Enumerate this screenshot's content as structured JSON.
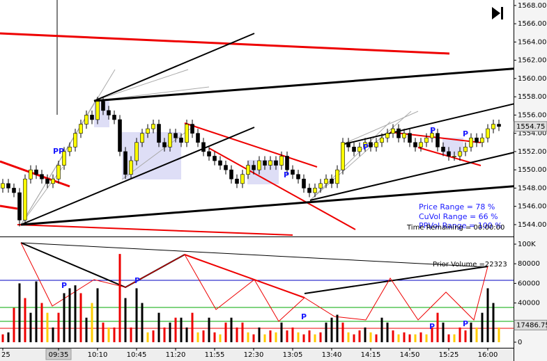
{
  "chart_data": [
    {
      "type": "candlestick",
      "open": [
        1548,
        1548.5,
        1548,
        1547.5,
        1544.5,
        1549,
        1550,
        1549.5,
        1549,
        1548.5,
        1549,
        1550.5,
        1552,
        1552.5,
        1554,
        1555,
        1556,
        1555.5,
        1557.5,
        1556.5,
        1556,
        1555.5,
        1552,
        1549.5,
        1551,
        1553,
        1554,
        1554.5,
        1555,
        1553,
        1552.5,
        1554,
        1553.5,
        1553,
        1555,
        1554,
        1553,
        1552,
        1551.5,
        1551,
        1550.5,
        1550,
        1549,
        1548.5,
        1549.5,
        1550.5,
        1550,
        1551,
        1550.5,
        1551,
        1550.5,
        1551.5,
        1550,
        1549.5,
        1549,
        1548,
        1547.5,
        1548,
        1548.5,
        1549,
        1548.5,
        1550,
        1553,
        1552.5,
        1552,
        1552.5,
        1553,
        1552.5,
        1553,
        1553.5,
        1554,
        1554.5,
        1553.5,
        1554,
        1553,
        1552.5,
        1553,
        1553.5,
        1554,
        1552.5,
        1552,
        1551.5,
        1551.5,
        1552,
        1552.5,
        1553.5,
        1553,
        1553.5,
        1554.5,
        1555
      ],
      "high": [
        1549,
        1549,
        1548.5,
        1548,
        1549.5,
        1550.5,
        1550.5,
        1550,
        1549.5,
        1549.5,
        1551,
        1552.5,
        1553,
        1554.5,
        1555.5,
        1556.5,
        1556.5,
        1558,
        1558,
        1557,
        1556.5,
        1556,
        1552.5,
        1551.5,
        1553.5,
        1554.5,
        1555,
        1555.5,
        1555.5,
        1553.5,
        1554.5,
        1554.5,
        1554,
        1555.5,
        1555.5,
        1554.5,
        1553.5,
        1552.5,
        1552,
        1551.5,
        1551,
        1550.5,
        1549.5,
        1550,
        1551,
        1551,
        1551.5,
        1551.5,
        1551.5,
        1551.5,
        1552,
        1552,
        1550.5,
        1550,
        1549.5,
        1548.5,
        1548.5,
        1549,
        1549.5,
        1549.5,
        1550.5,
        1553.5,
        1553.5,
        1553,
        1553,
        1553.5,
        1553.5,
        1553.5,
        1554,
        1554.5,
        1555,
        1555,
        1554.5,
        1554.5,
        1553.5,
        1553.5,
        1554,
        1554.5,
        1554.5,
        1553,
        1552.5,
        1552,
        1552.5,
        1553,
        1554,
        1554,
        1554,
        1555,
        1555.5,
        1555.5
      ],
      "low": [
        1547.5,
        1547.5,
        1547,
        1543.8,
        1544,
        1548.5,
        1549,
        1548.5,
        1548,
        1548,
        1548.5,
        1550,
        1551.5,
        1552,
        1553.5,
        1554.5,
        1555,
        1555,
        1556,
        1555.5,
        1555,
        1551.5,
        1549,
        1549,
        1550.5,
        1552.5,
        1553.5,
        1554,
        1552.5,
        1552,
        1552,
        1553,
        1552.5,
        1552.5,
        1553.5,
        1552.5,
        1551.5,
        1551,
        1550.5,
        1550,
        1549.5,
        1548.5,
        1548,
        1548,
        1549,
        1549.5,
        1549.5,
        1550,
        1550,
        1550,
        1550,
        1549.5,
        1549,
        1548.5,
        1547.5,
        1547,
        1547,
        1547.5,
        1548,
        1548,
        1548,
        1549.5,
        1552,
        1551.5,
        1551.5,
        1552,
        1552,
        1552,
        1552.5,
        1553,
        1553.5,
        1553,
        1553,
        1552.5,
        1552,
        1552,
        1552.5,
        1553,
        1552,
        1551.5,
        1551,
        1551,
        1551,
        1551.5,
        1552,
        1552.5,
        1552.5,
        1553,
        1554,
        1554.25
      ],
      "close": [
        1548.5,
        1548,
        1547.5,
        1544.5,
        1549,
        1550,
        1549.5,
        1549,
        1548.5,
        1549,
        1550.5,
        1552,
        1552.5,
        1554,
        1555,
        1556,
        1555.5,
        1557.5,
        1556.5,
        1556,
        1555.5,
        1552,
        1549.5,
        1551,
        1553,
        1554,
        1554.5,
        1555,
        1553,
        1552.5,
        1554,
        1553.5,
        1553,
        1555,
        1554,
        1553,
        1552,
        1551.5,
        1551,
        1550.5,
        1550,
        1549,
        1548.5,
        1549.5,
        1550.5,
        1550,
        1551,
        1550.5,
        1551,
        1550.5,
        1551.5,
        1550,
        1549.5,
        1549,
        1548,
        1547.5,
        1548,
        1548.5,
        1549,
        1548.5,
        1550,
        1553,
        1552.5,
        1552,
        1552.5,
        1553,
        1552.5,
        1553,
        1553.5,
        1554,
        1554.5,
        1553.5,
        1554,
        1553,
        1552.5,
        1553,
        1553.5,
        1554,
        1552.5,
        1552,
        1551.5,
        1551.5,
        1552,
        1552.5,
        1553.5,
        1553,
        1553.5,
        1554.5,
        1555,
        1554.75
      ],
      "up_color": "#ffff00",
      "down_color": "#000000",
      "ylim": [
        1542.7,
        1568.6
      ],
      "yticks": [
        {
          "value": 1544,
          "label": "1544.00"
        },
        {
          "value": 1546,
          "label": "1546.00"
        },
        {
          "value": 1548,
          "label": "1548.00"
        },
        {
          "value": 1550,
          "label": "1550.00"
        },
        {
          "value": 1552,
          "label": "1552.00"
        },
        {
          "value": 1554,
          "label": "1554.00"
        },
        {
          "value": 1556,
          "label": "1556.00"
        },
        {
          "value": 1558,
          "label": "1558.00"
        },
        {
          "value": 1560,
          "label": "1560.00"
        },
        {
          "value": 1562,
          "label": "1562.00"
        },
        {
          "value": 1564,
          "label": "1564.00"
        },
        {
          "value": 1566,
          "label": "1566.00"
        },
        {
          "value": 1568,
          "label": "1568.00"
        }
      ],
      "last_value": 1554.75,
      "stats": [
        "Price Range  = 78 %",
        "CuVol Range = 66 %",
        "PRVol Range = 100 %"
      ],
      "time_remaining": "Time Remaining = 00:00:00",
      "markers": [
        "PP",
        "P",
        "P",
        "P",
        "P"
      ]
    },
    {
      "type": "bar",
      "categories": [
        "25",
        null,
        null,
        null,
        null,
        null,
        null,
        null,
        null,
        null,
        "09:35",
        null,
        null,
        null,
        null,
        null,
        null,
        "10:10",
        null,
        null,
        null,
        null,
        null,
        null,
        "10:45",
        null,
        null,
        null,
        null,
        null,
        null,
        "11:20",
        null,
        null,
        null,
        null,
        null,
        null,
        "11:55",
        null,
        null,
        null,
        null,
        null,
        null,
        "12:30",
        null,
        null,
        null,
        null,
        null,
        null,
        "13:05",
        null,
        null,
        null,
        null,
        null,
        null,
        "13:40",
        null,
        null,
        null,
        null,
        null,
        null,
        "14:15",
        null,
        null,
        null,
        null,
        null,
        null,
        "14:50",
        null,
        null,
        null,
        null,
        null,
        null,
        "15:25",
        null,
        null,
        null,
        null,
        null,
        null,
        "16:00",
        null,
        null
      ],
      "values": [
        8000,
        10000,
        35000,
        60000,
        45000,
        30000,
        62000,
        40000,
        30000,
        15000,
        30000,
        50000,
        55000,
        58000,
        50000,
        25000,
        40000,
        55000,
        20000,
        15000,
        15000,
        90000,
        45000,
        15000,
        55000,
        40000,
        10000,
        12000,
        30000,
        15000,
        20000,
        25000,
        25000,
        15000,
        30000,
        10000,
        12000,
        25000,
        10000,
        8000,
        20000,
        25000,
        15000,
        20000,
        10000,
        8000,
        15000,
        8000,
        12000,
        10000,
        20000,
        12000,
        15000,
        10000,
        8000,
        12000,
        8000,
        10000,
        20000,
        25000,
        28000,
        20000,
        10000,
        8000,
        12000,
        15000,
        10000,
        8000,
        25000,
        20000,
        12000,
        8000,
        10000,
        8000,
        8000,
        10000,
        8000,
        15000,
        30000,
        20000,
        8000,
        8000,
        15000,
        12000,
        20000,
        15000,
        30000,
        55000,
        40000,
        15000
      ],
      "colors": [
        "#e00",
        "#000",
        "#e00",
        "#000",
        "#e00",
        "#000",
        "#000",
        "#e00",
        "#fc0",
        "#000",
        "#e00",
        "#000",
        "#000",
        "#000",
        "#e00",
        "#000",
        "#fc0",
        "#000",
        "#e00",
        "#fc0",
        "#e00",
        "#e00",
        "#000",
        "#e00",
        "#000",
        "#000",
        "#fc0",
        "#e00",
        "#000",
        "#e00",
        "#000",
        "#e00",
        "#000",
        "#000",
        "#e00",
        "#fc0",
        "#e00",
        "#000",
        "#e00",
        "#fc0",
        "#e00",
        "#000",
        "#e00",
        "#e00",
        "#fc0",
        "#e00",
        "#000",
        "#fc0",
        "#e00",
        "#fc0",
        "#000",
        "#e00",
        "#e00",
        "#fc0",
        "#e00",
        "#e00",
        "#fc0",
        "#e00",
        "#000",
        "#000",
        "#000",
        "#e00",
        "#fc0",
        "#e00",
        "#e00",
        "#000",
        "#fc0",
        "#e00",
        "#000",
        "#000",
        "#e00",
        "#fc0",
        "#e00",
        "#e00",
        "#fc0",
        "#e00",
        "#fc0",
        "#e00",
        "#e00",
        "#000",
        "#e00",
        "#fc0",
        "#e00",
        "#e00",
        "#000",
        "#fc0",
        "#000",
        "#000",
        "#000",
        "#fc0"
      ],
      "ylim": [
        -5700,
        106400
      ],
      "yticks": [
        0,
        20000,
        40000,
        60000,
        80000,
        {
          "value": 100000,
          "label": "100K"
        }
      ],
      "last_value": 17486.75,
      "prior_volume": "Prior Volume =22323",
      "markers": [
        "P",
        "P",
        "P",
        "P",
        "P"
      ]
    }
  ]
}
